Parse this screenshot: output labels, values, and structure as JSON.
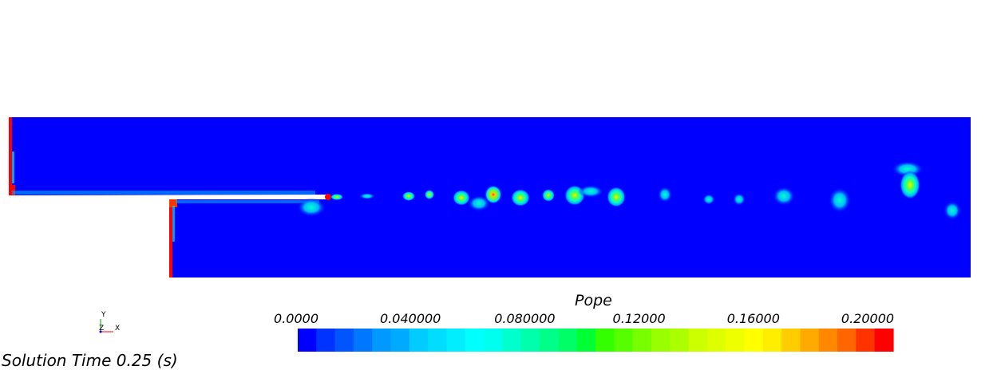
{
  "scalar_name": "Pope",
  "solution_time": "Solution Time 0.25 (s)",
  "colorbar": {
    "min": 0.0,
    "max": 0.2,
    "tick_labels": [
      "0.0000",
      "0.040000",
      "0.080000",
      "0.12000",
      "0.16000",
      "0.20000"
    ],
    "tick_values": [
      0.0,
      0.04,
      0.08,
      0.12,
      0.16,
      0.2
    ],
    "colors": [
      "#0000ff",
      "#0033ff",
      "#0055ff",
      "#0077ff",
      "#0099ff",
      "#00aaff",
      "#00ccff",
      "#00ddff",
      "#00eeff",
      "#00ffff",
      "#00ffee",
      "#00ffcc",
      "#00ffaa",
      "#00ff88",
      "#00ff66",
      "#00ff33",
      "#33ff00",
      "#55ff00",
      "#77ff00",
      "#99ff00",
      "#aaff00",
      "#ccff00",
      "#ddff00",
      "#eeff00",
      "#ffff00",
      "#ffee00",
      "#ffcc00",
      "#ffaa00",
      "#ff8800",
      "#ff6600",
      "#ff3300",
      "#ff0000"
    ]
  },
  "triad": {
    "y": "Y",
    "z": "Z",
    "x": "X"
  },
  "domain_colors": {
    "background_field": "#0000ff",
    "hot": "#ff0000"
  }
}
